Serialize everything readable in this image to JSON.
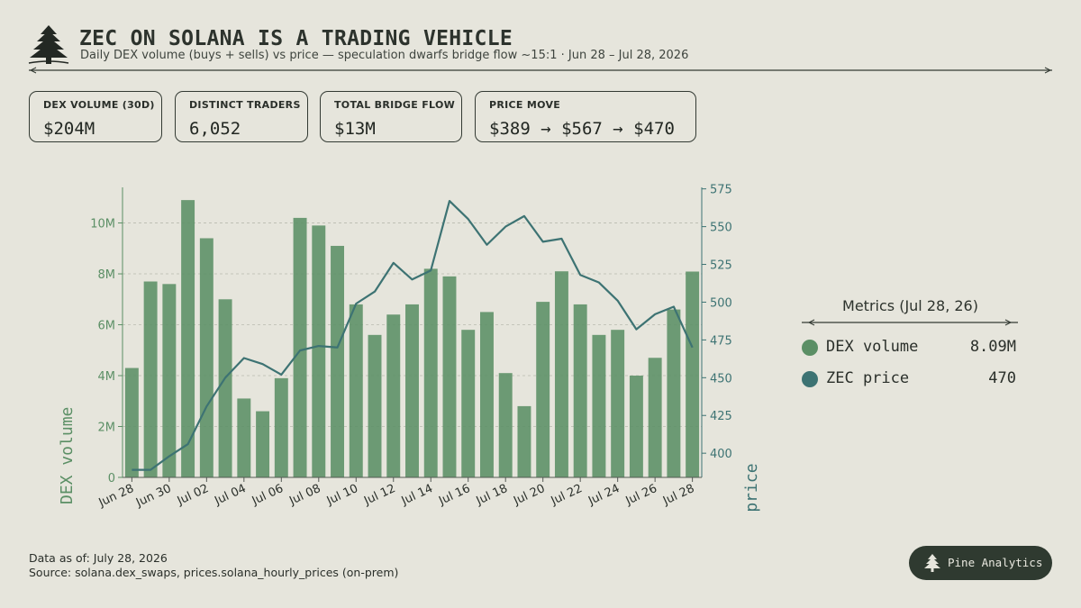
{
  "header": {
    "title": "ZEC ON SOLANA IS A TRADING VEHICLE",
    "subtitle": "Daily DEX volume (buys + sells) vs price — speculation dwarfs bridge flow ~15:1 · Jun 28 – Jul 28, 2026"
  },
  "kpis": [
    {
      "label": "DEX VOLUME (30D)",
      "value": "$204M"
    },
    {
      "label": "DISTINCT TRADERS",
      "value": "6,052"
    },
    {
      "label": "TOTAL BRIDGE FLOW",
      "value": "$13M"
    },
    {
      "label": "PRICE MOVE",
      "value": "$389 → $567 → $470"
    }
  ],
  "chart_data": {
    "type": "bar",
    "title": "",
    "xlabel": "",
    "ylabel": "DEX volume",
    "y2label": "ZEC price",
    "x": [
      "Jun 28",
      "Jun 29",
      "Jun 30",
      "Jul 01",
      "Jul 02",
      "Jul 03",
      "Jul 04",
      "Jul 05",
      "Jul 06",
      "Jul 07",
      "Jul 08",
      "Jul 09",
      "Jul 10",
      "Jul 11",
      "Jul 12",
      "Jul 13",
      "Jul 14",
      "Jul 15",
      "Jul 16",
      "Jul 17",
      "Jul 18",
      "Jul 19",
      "Jul 20",
      "Jul 21",
      "Jul 22",
      "Jul 23",
      "Jul 24",
      "Jul 25",
      "Jul 26",
      "Jul 27",
      "Jul 28"
    ],
    "x_tick_labels": [
      "Jun 28",
      "Jun 30",
      "Jul 02",
      "Jul 04",
      "Jul 06",
      "Jul 08",
      "Jul 10",
      "Jul 12",
      "Jul 14",
      "Jul 16",
      "Jul 18",
      "Jul 20",
      "Jul 22",
      "Jul 24",
      "Jul 26",
      "Jul 28"
    ],
    "ylim": [
      0,
      11400000
    ],
    "y_ticks": [
      0,
      2000000,
      4000000,
      6000000,
      8000000,
      10000000
    ],
    "y_tick_labels": [
      "0",
      "2M",
      "4M",
      "6M",
      "8M",
      "10M"
    ],
    "y2lim": [
      384,
      576
    ],
    "y2_ticks": [
      400,
      425,
      450,
      475,
      500,
      525,
      550,
      575
    ],
    "y2_tick_labels": [
      "400",
      "425",
      "450",
      "475",
      "500",
      "525",
      "550",
      "575"
    ],
    "grid": true,
    "series": [
      {
        "name": "DEX volume",
        "type": "bar",
        "axis": "left",
        "color": "#5b8f65",
        "values": [
          4300000,
          7700000,
          7600000,
          10900000,
          9400000,
          7000000,
          3100000,
          2600000,
          3900000,
          10200000,
          9900000,
          9100000,
          6800000,
          5600000,
          6400000,
          6800000,
          8200000,
          7900000,
          5800000,
          6500000,
          4100000,
          2800000,
          6900000,
          8100000,
          6800000,
          5600000,
          5800000,
          4000000,
          4700000,
          6600000,
          8090000
        ]
      },
      {
        "name": "ZEC price",
        "type": "line",
        "axis": "right",
        "color": "#3d7373",
        "values": [
          389,
          389,
          398,
          406,
          431,
          450,
          463,
          459,
          452,
          468,
          471,
          470,
          499,
          507,
          526,
          515,
          521,
          567,
          555,
          538,
          550,
          557,
          540,
          542,
          518,
          513,
          501,
          482,
          492,
          497,
          470
        ]
      }
    ]
  },
  "metrics": {
    "title": "Metrics (Jul 28, 26)",
    "items": [
      {
        "name": "DEX volume",
        "value": "8.09M",
        "color": "#5b8f65"
      },
      {
        "name": "ZEC price",
        "value": "470",
        "color": "#3d7373"
      }
    ]
  },
  "footer": {
    "data_as_of": "Data as of: July 28, 2026",
    "source": "Source: solana.dex_swaps, prices.solana_hourly_prices (on-prem)"
  },
  "brand": {
    "name": "Pine Analytics"
  },
  "colors": {
    "background": "#e6e5dc",
    "bar": "#5b8f65",
    "line": "#3d7373",
    "text": "#2a2f2a",
    "badge": "#2f3a30"
  }
}
